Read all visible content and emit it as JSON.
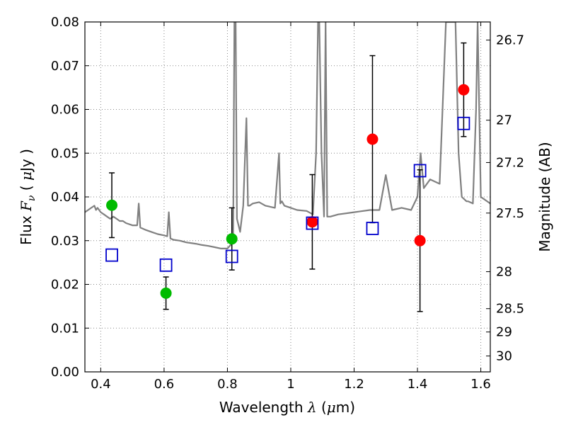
{
  "chart_data": {
    "type": "scatter",
    "xlabel": "Wavelength  λ (μm)",
    "ylabel": "Flux  Fν  ( μJy )",
    "ylabel2": "Magnitude (AB)",
    "xlim": [
      0.35,
      1.63
    ],
    "ylim": [
      0.0,
      0.08
    ],
    "grid": true,
    "x_ticks": [
      0.4,
      0.6,
      0.8,
      1.0,
      1.2,
      1.4,
      1.6
    ],
    "x_tick_labels": [
      "0.4",
      "0.6",
      "0.8",
      "1",
      "1.2",
      "1.4",
      "1.6"
    ],
    "y_ticks": [
      0.0,
      0.01,
      0.02,
      0.03,
      0.04,
      0.05,
      0.06,
      0.07,
      0.08
    ],
    "y_tick_labels": [
      "0.00",
      "0.01",
      "0.02",
      "0.03",
      "0.04",
      "0.05",
      "0.06",
      "0.07",
      "0.08"
    ],
    "mag_ticks": [
      26.7,
      27.0,
      27.2,
      27.5,
      28.0,
      28.5,
      29.0,
      30.0
    ],
    "mag_tick_labels": [
      "26.7",
      "27",
      "27.2",
      "27.5",
      "28",
      "28.5",
      "29",
      "30"
    ],
    "series": [
      {
        "marker": "filled-circle",
        "color": "#00bb00",
        "points": [
          {
            "x": 0.435,
            "y": 0.0381,
            "yerr_low": 0.0074,
            "yerr_high": 0.0074
          },
          {
            "x": 0.606,
            "y": 0.018,
            "yerr_low": 0.0037,
            "yerr_high": 0.0037
          },
          {
            "x": 0.814,
            "y": 0.0304,
            "yerr_low": 0.0071,
            "yerr_high": 0.0071
          }
        ]
      },
      {
        "marker": "filled-circle",
        "color": "#ff0000",
        "points": [
          {
            "x": 1.068,
            "y": 0.0343,
            "yerr_low": 0.0108,
            "yerr_high": 0.0108
          },
          {
            "x": 1.258,
            "y": 0.0532,
            "yerr_low": 0.0191,
            "yerr_high": 0.0191
          },
          {
            "x": 1.408,
            "y": 0.03,
            "yerr_low": 0.0162,
            "yerr_high": 0.0162
          },
          {
            "x": 1.546,
            "y": 0.0645,
            "yerr_low": 0.0107,
            "yerr_high": 0.0107
          }
        ]
      },
      {
        "marker": "open-square",
        "color": "#0000cc",
        "points": [
          {
            "x": 0.435,
            "y": 0.0267
          },
          {
            "x": 0.606,
            "y": 0.0244
          },
          {
            "x": 0.814,
            "y": 0.0264
          },
          {
            "x": 1.068,
            "y": 0.034
          },
          {
            "x": 1.258,
            "y": 0.0328
          },
          {
            "x": 1.408,
            "y": 0.046
          },
          {
            "x": 1.546,
            "y": 0.0568
          }
        ]
      }
    ],
    "sed_model": {
      "color": "#808080",
      "x": [
        0.35,
        0.36,
        0.37,
        0.38,
        0.385,
        0.39,
        0.4,
        0.41,
        0.42,
        0.43,
        0.44,
        0.45,
        0.46,
        0.47,
        0.48,
        0.5,
        0.515,
        0.52,
        0.525,
        0.54,
        0.56,
        0.58,
        0.6,
        0.61,
        0.615,
        0.62,
        0.63,
        0.65,
        0.67,
        0.7,
        0.72,
        0.74,
        0.76,
        0.78,
        0.8,
        0.81,
        0.818,
        0.822,
        0.826,
        0.83,
        0.84,
        0.85,
        0.86,
        0.865,
        0.87,
        0.88,
        0.9,
        0.92,
        0.95,
        0.963,
        0.967,
        0.972,
        0.98,
        1.0,
        1.02,
        1.05,
        1.07,
        1.08,
        1.086,
        1.09,
        1.097,
        1.105,
        1.11,
        1.115,
        1.125,
        1.15,
        1.2,
        1.25,
        1.28,
        1.3,
        1.32,
        1.35,
        1.38,
        1.4,
        1.41,
        1.42,
        1.44,
        1.47,
        1.49,
        1.5,
        1.52,
        1.53,
        1.54,
        1.555,
        1.56,
        1.575,
        1.585,
        1.59,
        1.6,
        1.63
      ],
      "y": [
        0.0365,
        0.037,
        0.0375,
        0.038,
        0.037,
        0.0375,
        0.0365,
        0.036,
        0.0355,
        0.035,
        0.0355,
        0.035,
        0.0345,
        0.0345,
        0.034,
        0.0335,
        0.0335,
        0.0385,
        0.033,
        0.0325,
        0.032,
        0.0315,
        0.0312,
        0.031,
        0.0365,
        0.0305,
        0.0302,
        0.03,
        0.0296,
        0.0293,
        0.029,
        0.0288,
        0.0285,
        0.0282,
        0.0282,
        0.029,
        0.03,
        0.08,
        0.08,
        0.035,
        0.032,
        0.038,
        0.058,
        0.038,
        0.038,
        0.0385,
        0.0388,
        0.038,
        0.0375,
        0.05,
        0.0385,
        0.039,
        0.038,
        0.0375,
        0.037,
        0.0368,
        0.036,
        0.05,
        0.08,
        0.08,
        0.05,
        0.0355,
        0.08,
        0.0355,
        0.0355,
        0.036,
        0.0365,
        0.037,
        0.037,
        0.045,
        0.037,
        0.0375,
        0.037,
        0.04,
        0.05,
        0.042,
        0.044,
        0.043,
        0.08,
        0.08,
        0.08,
        0.05,
        0.04,
        0.039,
        0.039,
        0.0385,
        0.06,
        0.08,
        0.04,
        0.0385
      ]
    }
  }
}
